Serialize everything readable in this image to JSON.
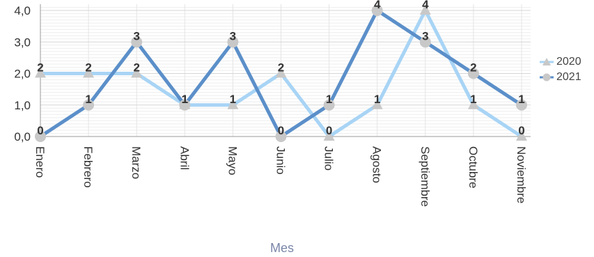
{
  "chart_data": {
    "type": "line",
    "categories": [
      "Enero",
      "Febrero",
      "Marzo",
      "Abril",
      "Mayo",
      "Junio",
      "Julio",
      "Agosto",
      "Septiembre",
      "Octubre",
      "Noviembre"
    ],
    "series": [
      {
        "name": "2020",
        "values": [
          2,
          2,
          2,
          1,
          1,
          2,
          0,
          1,
          4,
          1,
          0
        ],
        "color": "#a8d4f5",
        "marker": "triangle"
      },
      {
        "name": "2021",
        "values": [
          0,
          1,
          3,
          1,
          3,
          0,
          1,
          4,
          3,
          2,
          1
        ],
        "color": "#5b8fc9",
        "marker": "circle"
      }
    ],
    "yticks": [
      "0,0",
      "1,0",
      "2,0",
      "3,0",
      "4,0"
    ],
    "ylim": [
      0,
      4.2
    ],
    "xlabel": "Mes",
    "ylabel": "",
    "grid": true,
    "legend_position": "right",
    "marker_color": "#c8c8c8",
    "label_color": "#333333"
  }
}
